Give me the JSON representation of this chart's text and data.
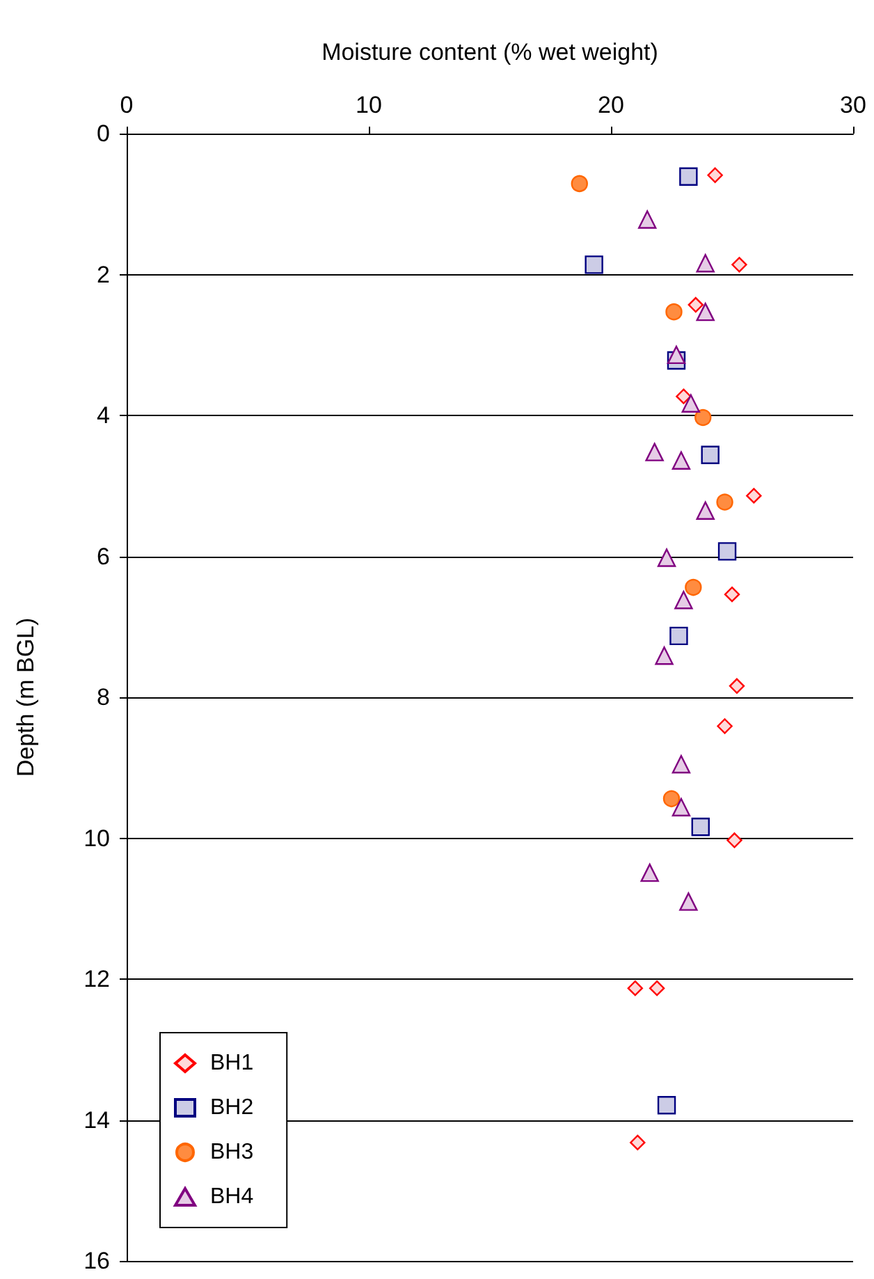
{
  "chart_data": {
    "type": "scatter",
    "xlabel": "Moisture content (% wet weight)",
    "ylabel": "Depth (m BGL)",
    "xlim": [
      0,
      30
    ],
    "xticks": [
      0,
      10,
      20,
      30
    ],
    "ylim": [
      16,
      0
    ],
    "yticks": [
      0,
      2,
      4,
      6,
      8,
      10,
      12,
      14,
      16
    ],
    "grid": "y",
    "legend": "bottom left",
    "series": [
      {
        "name": "BH1",
        "color": "#ff0000",
        "marker": "diamond",
        "x": [
          24.3,
          25.3,
          23.5,
          23.0,
          25.9,
          25.0,
          25.2,
          24.7,
          25.1,
          21.0,
          21.9,
          21.1
        ],
        "values": [
          0.59,
          1.86,
          2.43,
          3.73,
          5.14,
          6.54,
          7.84,
          8.41,
          10.03,
          12.13,
          12.13,
          14.32
        ]
      },
      {
        "name": "BH2",
        "color": "#000080",
        "marker": "square",
        "x": [
          23.2,
          19.3,
          22.7,
          24.1,
          24.8,
          22.8,
          23.7,
          22.3
        ],
        "values": [
          0.61,
          1.86,
          3.22,
          4.56,
          5.93,
          7.13,
          9.84,
          13.79
        ]
      },
      {
        "name": "BH3",
        "color": "#ff6600",
        "marker": "circle",
        "x": [
          18.7,
          22.6,
          23.8,
          24.7,
          23.4,
          22.5
        ],
        "values": [
          0.71,
          2.53,
          4.03,
          5.23,
          6.44,
          9.44
        ]
      },
      {
        "name": "BH4",
        "color": "#800080",
        "marker": "triangle",
        "x": [
          21.5,
          23.9,
          23.9,
          22.7,
          23.3,
          21.8,
          22.9,
          23.9,
          22.3,
          23.0,
          22.2,
          22.9,
          22.9,
          21.6,
          23.2
        ],
        "values": [
          1.22,
          1.84,
          2.53,
          3.14,
          3.83,
          4.52,
          4.64,
          5.35,
          6.02,
          6.62,
          7.41,
          8.95,
          9.56,
          10.49,
          10.9
        ]
      }
    ]
  }
}
